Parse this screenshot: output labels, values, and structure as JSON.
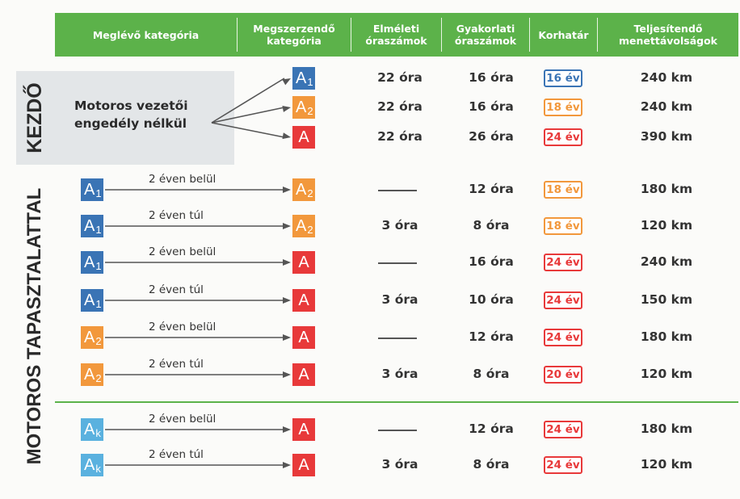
{
  "header": {
    "col_existing": "Meglévő kategória",
    "col_target": "Megszerzendő\nkategória",
    "col_theory": "Elméleti\nóraszámok",
    "col_practice": "Gyakorlati\nóraszámok",
    "col_age": "Korhatár",
    "col_distance": "Teljesítendő\nmenettávolságok"
  },
  "sections": {
    "beginner": "KEZDŐ",
    "experienced": "MOTOROS TAPASZTALATTAL"
  },
  "no_license_label": "Motoros vezetői\nengedély nélkül",
  "colors": {
    "A1": "#3a74b5",
    "A2": "#f2983c",
    "A": "#e8393a",
    "Ak": "#5ab1df",
    "green": "#5cb24a"
  },
  "kezdo_rows": [
    {
      "target": "A1",
      "theory": "22 óra",
      "practice": "16 óra",
      "age": "16 év",
      "age_color": "#3a74b5",
      "distance": "240 km"
    },
    {
      "target": "A2",
      "theory": "22 óra",
      "practice": "16 óra",
      "age": "18 év",
      "age_color": "#f2983c",
      "distance": "240 km"
    },
    {
      "target": "A",
      "theory": "22 óra",
      "practice": "26 óra",
      "age": "24 év",
      "age_color": "#e8393a",
      "distance": "390 km"
    }
  ],
  "exp_rows": [
    {
      "from": "A1",
      "period": "2 éven belül",
      "target": "A2",
      "theory": "",
      "practice": "12 óra",
      "age": "18 év",
      "age_color": "#f2983c",
      "distance": "180 km"
    },
    {
      "from": "A1",
      "period": "2 éven túl",
      "target": "A2",
      "theory": "3 óra",
      "practice": "8 óra",
      "age": "18 év",
      "age_color": "#f2983c",
      "distance": "120 km"
    },
    {
      "from": "A1",
      "period": "2 éven belül",
      "target": "A",
      "theory": "",
      "practice": "16 óra",
      "age": "24 év",
      "age_color": "#e8393a",
      "distance": "240 km"
    },
    {
      "from": "A1",
      "period": "2 éven túl",
      "target": "A",
      "theory": "3 óra",
      "practice": "10 óra",
      "age": "24 év",
      "age_color": "#e8393a",
      "distance": "150 km"
    },
    {
      "from": "A2",
      "period": "2 éven belül",
      "target": "A",
      "theory": "",
      "practice": "12 óra",
      "age": "24 év",
      "age_color": "#e8393a",
      "distance": "180 km"
    },
    {
      "from": "A2",
      "period": "2 éven túl",
      "target": "A",
      "theory": "3 óra",
      "practice": "8 óra",
      "age": "20 év",
      "age_color": "#e8393a",
      "distance": "120 km"
    },
    {
      "from": "Ak",
      "period": "2 éven belül",
      "target": "A",
      "theory": "",
      "practice": "12 óra",
      "age": "24 év",
      "age_color": "#e8393a",
      "distance": "180 km"
    },
    {
      "from": "Ak",
      "period": "2 éven túl",
      "target": "A",
      "theory": "3 óra",
      "practice": "8 óra",
      "age": "24 év",
      "age_color": "#e8393a",
      "distance": "120 km"
    }
  ]
}
